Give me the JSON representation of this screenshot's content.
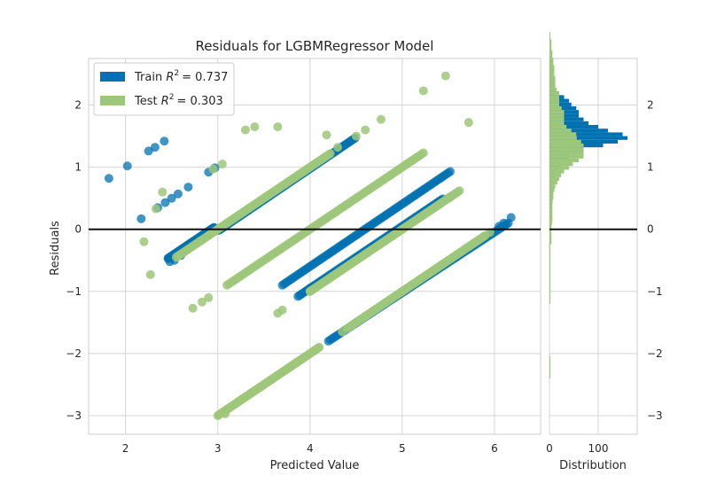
{
  "chart_data": [
    {
      "type": "scatter",
      "title": "Residuals for LGBMRegressor Model",
      "xlabel": "Predicted Value",
      "ylabel": "Residuals",
      "xlim": [
        1.6,
        6.5
      ],
      "ylim": [
        -3.3,
        2.75
      ],
      "xticks": [
        2,
        3,
        4,
        5,
        6
      ],
      "yticks": [
        -3,
        -2,
        -1,
        0,
        1,
        2
      ],
      "grid": true,
      "legend_position": "top-left",
      "hline": 0,
      "series": [
        {
          "name": "Train",
          "r2_label": "R",
          "r2_text": "= 0.737",
          "color": "#0072b2",
          "segments": [
            {
              "from": [
                2.46,
                -0.47
              ],
              "to": [
                2.96,
                0.03
              ]
            },
            {
              "from": [
                3.01,
                -0.02
              ],
              "to": [
                4.49,
                1.47
              ]
            },
            {
              "from": [
                3.7,
                -0.9
              ],
              "to": [
                5.52,
                0.93
              ]
            },
            {
              "from": [
                3.87,
                -1.08
              ],
              "to": [
                5.44,
                0.49
              ]
            },
            {
              "from": [
                4.2,
                -1.8
              ],
              "to": [
                6.15,
                0.1
              ]
            }
          ],
          "points": [
            [
              1.82,
              0.82
            ],
            [
              2.02,
              1.02
            ],
            [
              2.25,
              1.26
            ],
            [
              2.32,
              1.32
            ],
            [
              2.42,
              1.42
            ],
            [
              2.17,
              0.17
            ],
            [
              2.35,
              0.35
            ],
            [
              2.43,
              0.43
            ],
            [
              2.5,
              0.5
            ],
            [
              2.57,
              0.57
            ],
            [
              2.68,
              0.68
            ],
            [
              2.9,
              0.92
            ],
            [
              2.97,
              0.99
            ],
            [
              2.48,
              -0.52
            ],
            [
              2.53,
              -0.5
            ],
            [
              2.6,
              -0.42
            ],
            [
              6.05,
              0.05
            ],
            [
              6.1,
              0.1
            ],
            [
              6.18,
              0.19
            ],
            [
              4.0,
              -0.95
            ],
            [
              5.52,
              0.52
            ],
            [
              5.4,
              0.4
            ],
            [
              4.5,
              -1.5
            ],
            [
              5.7,
              -0.3
            ]
          ]
        },
        {
          "name": "Test",
          "r2_label": "R",
          "r2_text": "= 0.303",
          "color": "#9dc77a",
          "segments": [
            {
              "from": [
                2.55,
                -0.45
              ],
              "to": [
                4.22,
                1.22
              ]
            },
            {
              "from": [
                3.1,
                -0.9
              ],
              "to": [
                5.23,
                1.23
              ]
            },
            {
              "from": [
                4.0,
                -1.0
              ],
              "to": [
                5.62,
                0.62
              ]
            },
            {
              "from": [
                4.4,
                -1.6
              ],
              "to": [
                5.9,
                -0.1
              ]
            },
            {
              "from": [
                3.0,
                -3.0
              ],
              "to": [
                4.1,
                -1.9
              ]
            }
          ],
          "points": [
            [
              2.27,
              -0.73
            ],
            [
              2.33,
              0.33
            ],
            [
              2.6,
              -0.4
            ],
            [
              2.73,
              -1.27
            ],
            [
              2.83,
              -1.17
            ],
            [
              2.9,
              -1.1
            ],
            [
              2.95,
              0.97
            ],
            [
              3.05,
              1.05
            ],
            [
              3.08,
              -2.97
            ],
            [
              3.12,
              -2.88
            ],
            [
              3.25,
              -2.75
            ],
            [
              3.3,
              1.6
            ],
            [
              3.4,
              1.65
            ],
            [
              3.45,
              -2.55
            ],
            [
              3.58,
              -2.42
            ],
            [
              3.65,
              1.65
            ],
            [
              3.75,
              -2.25
            ],
            [
              3.85,
              -2.15
            ],
            [
              3.92,
              -2.08
            ],
            [
              4.18,
              1.52
            ],
            [
              4.3,
              1.32
            ],
            [
              4.35,
              -1.65
            ],
            [
              4.5,
              1.5
            ],
            [
              4.6,
              1.6
            ],
            [
              4.77,
              1.77
            ],
            [
              4.83,
              -1.17
            ],
            [
              4.95,
              0.95
            ],
            [
              5.05,
              1.05
            ],
            [
              5.1,
              1.1
            ],
            [
              5.15,
              1.15
            ],
            [
              5.23,
              2.23
            ],
            [
              5.47,
              2.47
            ],
            [
              5.52,
              0.52
            ],
            [
              5.72,
              1.72
            ],
            [
              3.65,
              -1.35
            ],
            [
              3.7,
              -1.3
            ],
            [
              4.0,
              -1.0
            ],
            [
              2.2,
              -0.2
            ],
            [
              2.4,
              0.6
            ],
            [
              5.95,
              -0.05
            ]
          ]
        }
      ]
    },
    {
      "type": "histogram",
      "orientation": "horizontal",
      "xlabel": "Distribution",
      "ylabel": "",
      "xlim": [
        0,
        180
      ],
      "xticks": [
        0,
        100
      ],
      "ylim": [
        -3.3,
        2.75
      ],
      "yticks": [
        -3,
        -2,
        -1,
        0,
        1,
        2
      ],
      "bin_width": 0.06,
      "bins_from": -2.4,
      "train_counts": [
        0,
        0,
        0,
        0,
        0,
        0,
        0,
        0,
        0,
        0,
        0,
        0,
        0,
        0,
        0,
        0,
        0,
        0,
        0,
        0,
        0,
        0,
        0,
        0,
        0,
        0,
        0,
        0,
        0,
        0,
        0,
        0,
        0,
        0,
        0,
        0,
        0,
        0,
        0,
        0,
        0,
        0,
        0,
        0,
        0,
        0,
        3,
        6,
        6,
        6,
        6,
        6,
        6,
        8,
        10,
        12,
        18,
        22,
        28,
        40,
        50,
        70,
        110,
        140,
        160,
        150,
        120,
        100,
        80,
        70,
        60,
        60,
        55,
        45,
        40,
        30,
        20,
        12,
        10,
        8,
        6,
        6,
        6,
        4,
        4,
        0,
        0,
        0,
        0,
        0,
        0,
        0,
        0
      ],
      "test_counts": [
        2,
        2,
        2,
        2,
        2,
        2,
        0,
        0,
        0,
        0,
        0,
        0,
        0,
        0,
        0,
        0,
        0,
        0,
        0,
        0,
        2,
        2,
        2,
        2,
        2,
        2,
        2,
        2,
        2,
        2,
        2,
        2,
        2,
        2,
        2,
        2,
        4,
        4,
        4,
        4,
        4,
        5,
        6,
        6,
        6,
        6,
        6,
        6,
        8,
        8,
        10,
        12,
        16,
        20,
        24,
        30,
        40,
        48,
        60,
        70,
        70,
        70,
        70,
        65,
        56,
        55,
        45,
        35,
        30,
        30,
        30,
        30,
        25,
        20,
        20,
        20,
        20,
        15,
        12,
        12,
        12,
        10,
        10,
        10,
        8,
        8,
        6,
        6,
        4,
        4,
        4,
        2,
        2
      ]
    }
  ]
}
